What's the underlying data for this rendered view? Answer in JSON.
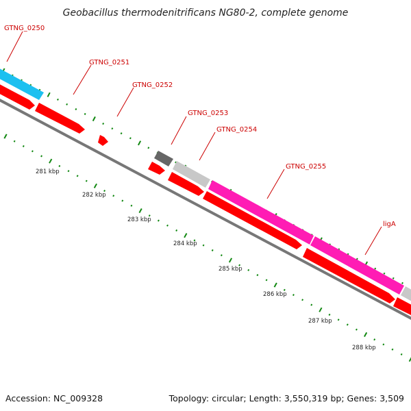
{
  "title": "Geobacillus thermodenitrificans NG80-2, complete genome",
  "footer": {
    "accession": "Accession: NC_009328",
    "info": "Topology: circular; Length: 3,550,319 bp; Genes: 3,509"
  },
  "colors": {
    "cds": "#ff0000",
    "gene_cyan": "#1cc0f0",
    "gene_magenta": "#ff1cb4",
    "gene_gray": "#c0c0c0",
    "gene_darkgray": "#666666",
    "backbone": "#777777",
    "tick": "#118811",
    "label": "#cc0000"
  },
  "gene_labels": [
    "GTNG_0250",
    "GTNG_0251",
    "GTNG_0252",
    "GTNG_0253",
    "GTNG_0254",
    "GTNG_0255",
    "ligA"
  ],
  "kbp_labels": [
    "281 kbp",
    "282 kbp",
    "283 kbp",
    "284 kbp",
    "285 kbp",
    "286 kbp",
    "287 kbp",
    "288 kbp"
  ]
}
